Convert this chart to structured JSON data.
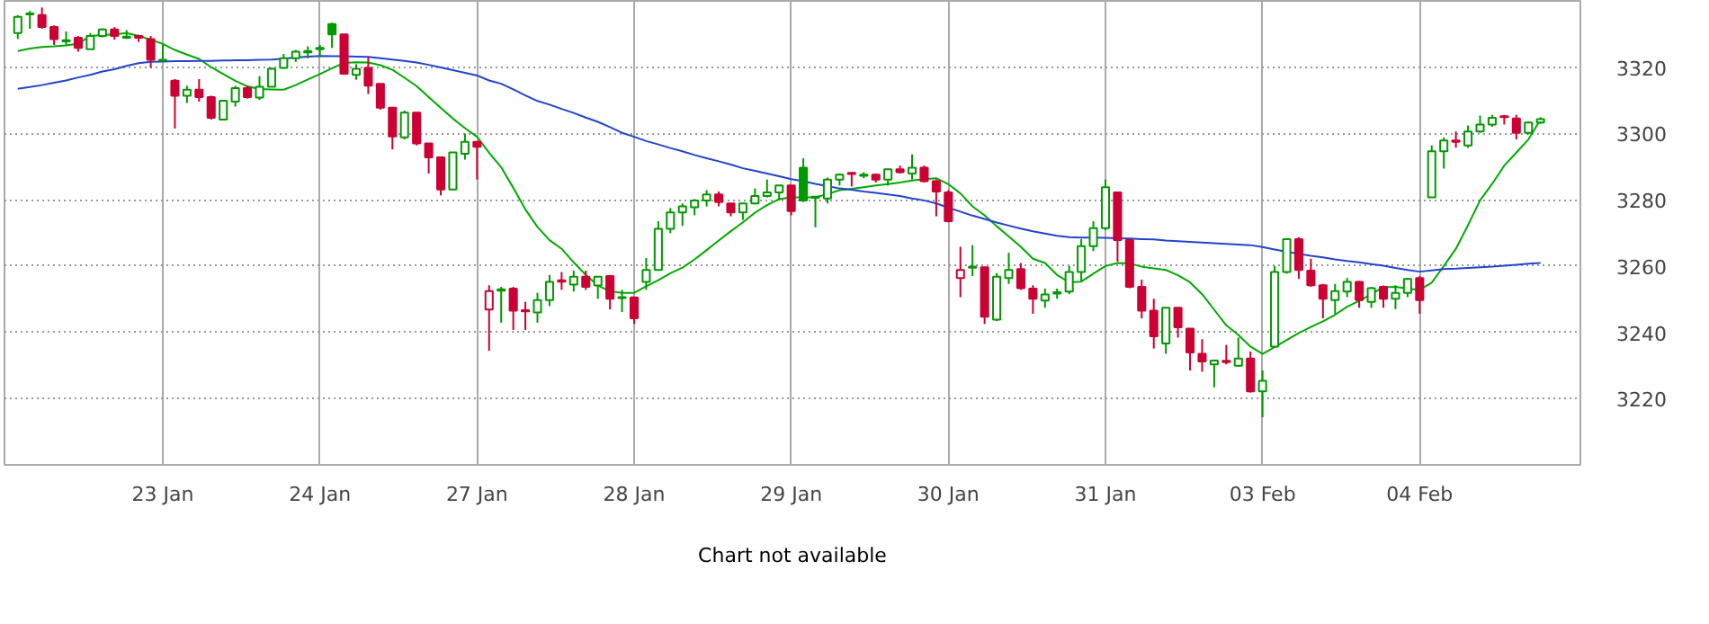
{
  "chart_data": {
    "type": "candlestick",
    "categories": [
      null,
      null,
      null,
      null,
      null,
      null,
      null,
      null,
      null,
      null,
      null,
      null,
      "23 Jan",
      null,
      null,
      null,
      null,
      null,
      null,
      null,
      null,
      null,
      null,
      null,
      null,
      "24 Jan",
      null,
      null,
      null,
      null,
      null,
      null,
      null,
      null,
      null,
      null,
      null,
      null,
      "27 Jan",
      null,
      null,
      null,
      null,
      null,
      null,
      null,
      null,
      null,
      null,
      null,
      null,
      "28 Jan",
      null,
      null,
      null,
      null,
      null,
      null,
      null,
      null,
      null,
      null,
      null,
      null,
      "29 Jan",
      null,
      null,
      null,
      null,
      null,
      null,
      null,
      null,
      null,
      null,
      null,
      null,
      "30 Jan",
      null,
      null,
      null,
      null,
      null,
      null,
      null,
      null,
      null,
      null,
      null,
      null,
      "31 Jan",
      null,
      null,
      null,
      null,
      null,
      null,
      null,
      null,
      null,
      null,
      null,
      null,
      "03 Feb",
      null,
      null,
      null,
      null,
      null,
      null,
      null,
      null,
      null,
      null,
      null,
      null,
      "04 Feb",
      null,
      null,
      null,
      null,
      null,
      null,
      null,
      null,
      null,
      null
    ],
    "ohlc": [
      [
        3330.3,
        3335.7,
        3328.5,
        3335.2
      ],
      [
        3335.9,
        3337.0,
        3331.6,
        3336.2
      ],
      [
        3335.7,
        3338.0,
        3331.6,
        3332.1
      ],
      [
        3332.1,
        3332.6,
        3326.7,
        3328.5
      ],
      [
        3327.8,
        3330.8,
        3326.7,
        3328.1
      ],
      [
        3328.9,
        3329.4,
        3324.7,
        3325.8
      ],
      [
        3325.4,
        3330.3,
        3325.4,
        3329.4
      ],
      [
        3329.4,
        3331.7,
        3329.0,
        3331.4
      ],
      [
        3331.4,
        3332.1,
        3328.3,
        3329.4
      ],
      [
        3328.9,
        3331.2,
        3328.5,
        3329.2
      ],
      [
        3329.4,
        3329.8,
        3327.6,
        3328.9
      ],
      [
        3328.5,
        3329.4,
        3319.8,
        3322.2
      ],
      [
        3322.0,
        3326.7,
        3321.6,
        3322.2
      ],
      [
        3315.9,
        3316.4,
        3301.5,
        3311.4
      ],
      [
        3311.4,
        3314.4,
        3309.2,
        3313.2
      ],
      [
        3313.2,
        3316.4,
        3309.6,
        3311.0
      ],
      [
        3311.0,
        3311.4,
        3304.2,
        3304.7
      ],
      [
        3304.2,
        3309.9,
        3304.2,
        3309.9
      ],
      [
        3309.6,
        3314.4,
        3308.1,
        3313.7
      ],
      [
        3313.7,
        3314.4,
        3310.5,
        3311.0
      ],
      [
        3310.8,
        3317.3,
        3310.1,
        3314.1
      ],
      [
        3314.1,
        3319.8,
        3314.1,
        3319.5
      ],
      [
        3319.8,
        3324.0,
        3319.5,
        3322.7
      ],
      [
        3322.7,
        3325.2,
        3321.6,
        3324.7
      ],
      [
        3324.5,
        3326.3,
        3322.7,
        3324.9
      ],
      [
        3325.4,
        3326.7,
        3323.1,
        3325.8
      ],
      [
        3333.0,
        3333.4,
        3325.8,
        3329.9
      ],
      [
        3329.9,
        3329.9,
        3317.7,
        3318.0
      ],
      [
        3317.7,
        3320.9,
        3316.2,
        3319.5
      ],
      [
        3319.8,
        3323.1,
        3311.9,
        3314.4
      ],
      [
        3315.0,
        3315.0,
        3307.2,
        3307.8
      ],
      [
        3307.8,
        3307.8,
        3295.2,
        3299.1
      ],
      [
        3298.8,
        3306.9,
        3298.2,
        3306.3
      ],
      [
        3306.3,
        3306.3,
        3296.4,
        3297.0
      ],
      [
        3297.0,
        3297.0,
        3287.9,
        3292.8
      ],
      [
        3292.8,
        3292.8,
        3281.3,
        3283.1
      ],
      [
        3283.1,
        3294.3,
        3283.1,
        3294.3
      ],
      [
        3293.9,
        3300.0,
        3292.1,
        3297.5
      ],
      [
        3297.5,
        3297.5,
        3286.1,
        3296.0
      ],
      [
        3246.9,
        3254.2,
        3234.4,
        3252.4
      ],
      [
        3252.6,
        3253.7,
        3242.9,
        3253.0
      ],
      [
        3253.2,
        3253.7,
        3240.7,
        3246.5
      ],
      [
        3246.7,
        3249.2,
        3240.7,
        3246.3
      ],
      [
        3246.0,
        3251.9,
        3242.9,
        3249.7
      ],
      [
        3249.7,
        3257.3,
        3247.9,
        3255.2
      ],
      [
        3255.7,
        3258.2,
        3252.8,
        3255.3
      ],
      [
        3254.4,
        3258.6,
        3252.3,
        3256.8
      ],
      [
        3256.8,
        3258.6,
        3252.8,
        3253.7
      ],
      [
        3254.1,
        3256.8,
        3250.1,
        3256.8
      ],
      [
        3257.0,
        3257.3,
        3246.9,
        3250.1
      ],
      [
        3250.3,
        3252.8,
        3246.1,
        3250.6
      ],
      [
        3250.5,
        3250.5,
        3242.5,
        3244.2
      ],
      [
        3255.2,
        3262.4,
        3252.8,
        3258.8
      ],
      [
        3258.8,
        3273.5,
        3258.8,
        3271.2
      ],
      [
        3271.2,
        3277.5,
        3269.9,
        3276.2
      ],
      [
        3276.2,
        3278.9,
        3272.1,
        3278.0
      ],
      [
        3277.7,
        3280.2,
        3275.3,
        3279.8
      ],
      [
        3279.8,
        3282.9,
        3278.0,
        3281.6
      ],
      [
        3281.6,
        3282.5,
        3278.0,
        3279.3
      ],
      [
        3278.9,
        3278.9,
        3275.0,
        3276.2
      ],
      [
        3276.2,
        3278.9,
        3273.9,
        3278.9
      ],
      [
        3278.9,
        3283.4,
        3278.6,
        3281.1
      ],
      [
        3281.1,
        3286.1,
        3280.7,
        3282.2
      ],
      [
        3282.2,
        3284.3,
        3279.8,
        3284.3
      ],
      [
        3284.3,
        3284.3,
        3275.3,
        3276.6
      ],
      [
        3289.7,
        3292.5,
        3279.3,
        3279.8
      ],
      [
        3280.6,
        3281.0,
        3271.7,
        3280.9
      ],
      [
        3280.4,
        3286.7,
        3278.9,
        3286.1
      ],
      [
        3286.1,
        3287.9,
        3284.3,
        3287.6
      ],
      [
        3288.1,
        3288.3,
        3284.0,
        3287.8
      ],
      [
        3287.2,
        3288.3,
        3286.5,
        3287.6
      ],
      [
        3287.6,
        3287.9,
        3285.2,
        3286.1
      ],
      [
        3286.1,
        3289.2,
        3284.3,
        3289.2
      ],
      [
        3289.2,
        3290.3,
        3287.9,
        3288.3
      ],
      [
        3287.9,
        3293.7,
        3286.1,
        3289.7
      ],
      [
        3289.7,
        3290.3,
        3285.2,
        3285.6
      ],
      [
        3285.6,
        3286.1,
        3275.0,
        3282.5
      ],
      [
        3282.2,
        3282.9,
        3273.2,
        3273.5
      ],
      [
        3256.4,
        3265.8,
        3250.6,
        3258.8
      ],
      [
        3259.5,
        3266.3,
        3257.0,
        3259.8
      ],
      [
        3259.6,
        3259.6,
        3242.5,
        3244.7
      ],
      [
        3243.8,
        3257.9,
        3243.4,
        3256.8
      ],
      [
        3256.4,
        3264.0,
        3254.6,
        3258.8
      ],
      [
        3259.1,
        3260.9,
        3252.8,
        3253.3
      ],
      [
        3253.2,
        3254.2,
        3245.6,
        3250.1
      ],
      [
        3249.6,
        3253.2,
        3247.4,
        3251.4
      ],
      [
        3251.7,
        3253.2,
        3250.1,
        3252.1
      ],
      [
        3252.3,
        3260.0,
        3251.5,
        3258.2
      ],
      [
        3258.2,
        3268.1,
        3255.5,
        3266.0
      ],
      [
        3266.0,
        3273.5,
        3264.5,
        3271.4
      ],
      [
        3271.4,
        3286.1,
        3270.8,
        3283.8
      ],
      [
        3282.2,
        3282.2,
        3261.3,
        3267.8
      ],
      [
        3267.8,
        3267.8,
        3253.3,
        3253.7
      ],
      [
        3253.7,
        3255.9,
        3244.2,
        3246.5
      ],
      [
        3246.5,
        3250.1,
        3235.1,
        3238.8
      ],
      [
        3236.6,
        3247.4,
        3233.5,
        3247.4
      ],
      [
        3247.4,
        3247.4,
        3238.4,
        3241.5
      ],
      [
        3241.1,
        3241.1,
        3228.5,
        3233.9
      ],
      [
        3233.5,
        3237.9,
        3228.1,
        3231.2
      ],
      [
        3230.3,
        3231.5,
        3223.4,
        3231.5
      ],
      [
        3231.4,
        3236.2,
        3230.3,
        3231.0
      ],
      [
        3229.9,
        3238.4,
        3229.6,
        3232.1
      ],
      [
        3232.1,
        3234.2,
        3221.8,
        3222.2
      ],
      [
        3222.2,
        3228.5,
        3214.4,
        3225.4
      ],
      [
        3235.7,
        3260.0,
        3235.3,
        3258.2
      ],
      [
        3258.2,
        3268.1,
        3257.7,
        3268.1
      ],
      [
        3268.1,
        3268.7,
        3256.1,
        3258.8
      ],
      [
        3258.6,
        3262.2,
        3253.7,
        3254.2
      ],
      [
        3254.2,
        3254.6,
        3244.2,
        3250.1
      ],
      [
        3249.7,
        3254.6,
        3245.6,
        3252.4
      ],
      [
        3252.3,
        3256.4,
        3250.6,
        3255.2
      ],
      [
        3255.2,
        3255.5,
        3247.4,
        3249.7
      ],
      [
        3249.2,
        3253.7,
        3247.4,
        3253.3
      ],
      [
        3253.7,
        3254.1,
        3247.4,
        3250.1
      ],
      [
        3250.1,
        3254.2,
        3247.0,
        3251.9
      ],
      [
        3251.9,
        3256.4,
        3250.6,
        3256.1
      ],
      [
        3256.4,
        3257.0,
        3245.6,
        3249.7
      ],
      [
        3280.7,
        3296.4,
        3280.7,
        3294.6
      ],
      [
        3294.6,
        3298.8,
        3289.4,
        3297.9
      ],
      [
        3297.9,
        3300.6,
        3295.7,
        3297.5
      ],
      [
        3296.4,
        3302.4,
        3295.7,
        3300.6
      ],
      [
        3300.6,
        3305.4,
        3300.2,
        3302.7
      ],
      [
        3302.7,
        3305.6,
        3302.0,
        3304.7
      ],
      [
        3305.2,
        3305.6,
        3302.7,
        3304.9
      ],
      [
        3304.5,
        3305.6,
        3298.2,
        3300.2
      ],
      [
        3300.2,
        3303.6,
        3299.7,
        3303.3
      ],
      [
        3303.3,
        3304.9,
        3302.9,
        3304.3
      ]
    ],
    "colors": [
      "#009900",
      "#009900",
      "#cc0033",
      "#cc0033",
      "#009900",
      "#cc0033",
      "#009900",
      "#009900",
      "#cc0033",
      "#009900",
      "#cc0033",
      "#cc0033",
      "#009900",
      "#cc0033",
      "#009900",
      "#cc0033",
      "#cc0033",
      "#009900",
      "#009900",
      "#cc0033",
      "#009900",
      "#009900",
      "#009900",
      "#009900",
      "#009900",
      "#009900",
      "#009900",
      "#cc0033",
      "#009900",
      "#cc0033",
      "#cc0033",
      "#cc0033",
      "#009900",
      "#cc0033",
      "#cc0033",
      "#cc0033",
      "#009900",
      "#009900",
      "#cc0033",
      "#cc0033",
      "#009900",
      "#cc0033",
      "#cc0033",
      "#009900",
      "#009900",
      "#cc0033",
      "#009900",
      "#cc0033",
      "#009900",
      "#cc0033",
      "#009900",
      "#cc0033",
      "#009900",
      "#009900",
      "#009900",
      "#009900",
      "#009900",
      "#009900",
      "#cc0033",
      "#cc0033",
      "#009900",
      "#009900",
      "#009900",
      "#009900",
      "#cc0033",
      "#009900",
      "#009900",
      "#009900",
      "#009900",
      "#cc0033",
      "#009900",
      "#cc0033",
      "#009900",
      "#cc0033",
      "#009900",
      "#cc0033",
      "#cc0033",
      "#cc0033",
      "#cc0033",
      "#009900",
      "#cc0033",
      "#009900",
      "#009900",
      "#cc0033",
      "#cc0033",
      "#009900",
      "#009900",
      "#009900",
      "#009900",
      "#009900",
      "#009900",
      "#cc0033",
      "#cc0033",
      "#cc0033",
      "#cc0033",
      "#009900",
      "#cc0033",
      "#cc0033",
      "#cc0033",
      "#009900",
      "#cc0033",
      "#009900",
      "#cc0033",
      "#009900",
      "#009900",
      "#009900",
      "#cc0033",
      "#cc0033",
      "#cc0033",
      "#009900",
      "#009900",
      "#cc0033",
      "#009900",
      "#cc0033",
      "#009900",
      "#009900",
      "#cc0033",
      "#009900",
      "#009900",
      "#cc0033",
      "#009900",
      "#009900",
      "#009900",
      "#cc0033",
      "#cc0033",
      "#009900",
      "#009900"
    ],
    "series": [
      {
        "type": "line",
        "color": "#00aa00",
        "values": [
          3324.9,
          3325.6,
          3326.1,
          3326.3,
          3326.6,
          3327.1,
          3329.4,
          3329.7,
          3329.9,
          3330.3,
          3329.4,
          3328.3,
          3327.0,
          3325.2,
          3323.8,
          3322.5,
          3320.0,
          3317.9,
          3315.9,
          3314.2,
          3313.4,
          3313.3,
          3313.2,
          3314.6,
          3316.3,
          3317.9,
          3319.7,
          3321.3,
          3321.5,
          3321.4,
          3320.6,
          3319.2,
          3316.8,
          3314.3,
          3311.0,
          3307.7,
          3304.5,
          3301.6,
          3299.0,
          3294.2,
          3289.8,
          3283.6,
          3277.1,
          3271.8,
          3267.8,
          3265.2,
          3261.1,
          3257.3,
          3254.1,
          3252.4,
          3251.9,
          3251.9,
          3253.9,
          3255.7,
          3257.8,
          3259.5,
          3262.0,
          3264.8,
          3267.7,
          3270.5,
          3273.2,
          3276.1,
          3278.4,
          3280.2,
          3280.7,
          3280.7,
          3280.7,
          3281.7,
          3282.9,
          3283.3,
          3283.8,
          3284.3,
          3284.7,
          3285.2,
          3285.8,
          3286.2,
          3286.5,
          3284.7,
          3281.9,
          3278.0,
          3275.3,
          3272.0,
          3268.9,
          3265.8,
          3262.2,
          3260.9,
          3257.3,
          3255.1,
          3255.3,
          3257.7,
          3260.0,
          3260.9,
          3260.8,
          3259.8,
          3259.3,
          3258.8,
          3257.2,
          3255.1,
          3251.5,
          3246.8,
          3242.1,
          3239.2,
          3235.7,
          3233.5,
          3235.5,
          3237.7,
          3239.8,
          3241.6,
          3243.3,
          3245.3,
          3247.7,
          3249.5,
          3251.5,
          3253.6,
          3253.7,
          3253.2,
          3252.8,
          3255.0,
          3260.0,
          3265.2,
          3272.3,
          3279.8,
          3284.8,
          3290.3,
          3294.2,
          3298.2,
          3304.2
        ]
      },
      {
        "type": "line",
        "color": "#2244cc",
        "values": [
          3313.5,
          3314.0,
          3314.6,
          3315.3,
          3316.0,
          3316.9,
          3317.7,
          3318.7,
          3319.4,
          3320.4,
          3321.2,
          3321.6,
          3321.7,
          3321.8,
          3321.8,
          3321.9,
          3321.9,
          3322.0,
          3322.1,
          3322.1,
          3322.2,
          3322.3,
          3322.6,
          3322.9,
          3323.2,
          3323.4,
          3323.3,
          3323.3,
          3323.2,
          3323.1,
          3322.7,
          3322.3,
          3321.9,
          3321.4,
          3320.7,
          3319.9,
          3319.1,
          3318.3,
          3317.5,
          3316.0,
          3315.0,
          3313.3,
          3311.5,
          3309.8,
          3308.7,
          3307.4,
          3306.2,
          3304.8,
          3303.5,
          3301.9,
          3300.2,
          3299.0,
          3297.7,
          3296.7,
          3295.6,
          3294.6,
          3293.5,
          3292.5,
          3291.6,
          3290.6,
          3289.5,
          3288.7,
          3287.9,
          3287.1,
          3286.2,
          3285.6,
          3284.8,
          3284.1,
          3283.4,
          3283.0,
          3282.5,
          3282.1,
          3281.6,
          3281.1,
          3280.4,
          3279.8,
          3278.9,
          3277.6,
          3276.4,
          3275.2,
          3274.2,
          3273.1,
          3272.2,
          3271.3,
          3270.5,
          3269.8,
          3269.1,
          3268.7,
          3268.6,
          3268.6,
          3268.5,
          3268.4,
          3268.3,
          3268.1,
          3268.0,
          3267.7,
          3267.5,
          3267.3,
          3267.1,
          3266.9,
          3266.7,
          3266.5,
          3266.3,
          3265.7,
          3265.0,
          3264.3,
          3263.7,
          3263.1,
          3262.6,
          3262.0,
          3261.5,
          3261.1,
          3260.6,
          3260.1,
          3259.4,
          3258.8,
          3258.3,
          3258.7,
          3259.1,
          3259.2,
          3259.4,
          3259.6,
          3259.8,
          3260.1,
          3260.4,
          3260.7,
          3260.9
        ]
      }
    ],
    "ylim": [
      3200,
      3340
    ],
    "yticks": [
      3220,
      3240,
      3260,
      3280,
      3300,
      3320
    ],
    "grid": true,
    "annotations": [
      "Chart not available"
    ]
  }
}
